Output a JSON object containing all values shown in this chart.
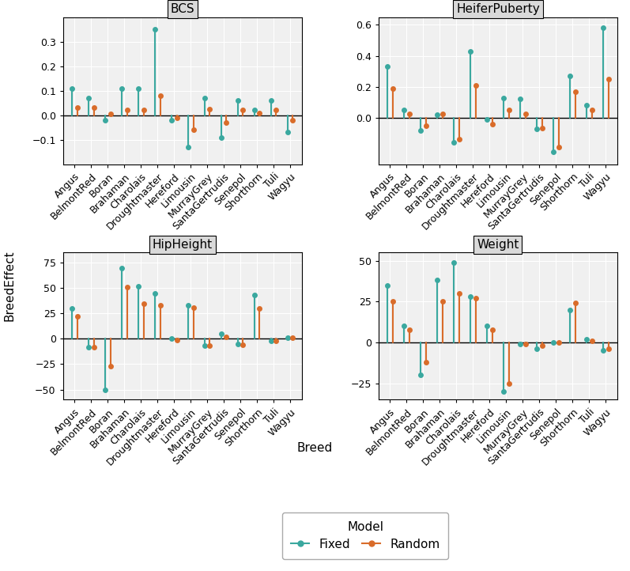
{
  "breeds": [
    "Angus",
    "BelmontRed",
    "Boran",
    "Brahaman",
    "Charolais",
    "Droughtmaster",
    "Hereford",
    "Limousin",
    "MurrayGrey",
    "SantaGertrudis",
    "Senepol",
    "Shorthorn",
    "Tuli",
    "Wagyu"
  ],
  "panels": {
    "BCS": {
      "fixed": [
        0.11,
        0.07,
        -0.02,
        0.11,
        0.11,
        0.35,
        -0.02,
        -0.13,
        0.07,
        -0.09,
        0.06,
        0.02,
        0.06,
        -0.07
      ],
      "random": [
        0.03,
        0.03,
        0.005,
        0.02,
        0.02,
        0.08,
        -0.01,
        -0.06,
        0.025,
        -0.03,
        0.02,
        0.01,
        0.02,
        -0.02
      ],
      "ylim": [
        -0.2,
        0.4
      ],
      "yticks": [
        -0.1,
        0.0,
        0.1,
        0.2,
        0.3
      ],
      "title": "BCS"
    },
    "HeiferPuberty": {
      "fixed": [
        0.33,
        0.05,
        -0.08,
        0.02,
        -0.16,
        0.43,
        -0.01,
        0.13,
        0.12,
        -0.07,
        -0.22,
        0.27,
        0.08,
        0.58
      ],
      "random": [
        0.19,
        0.025,
        -0.05,
        0.025,
        -0.14,
        0.21,
        -0.04,
        0.05,
        0.025,
        -0.065,
        -0.19,
        0.17,
        0.05,
        0.25
      ],
      "ylim": [
        -0.3,
        0.65
      ],
      "yticks": [
        0.0,
        0.2,
        0.4,
        0.6
      ],
      "title": "HeiferPuberty"
    },
    "HipHeight": {
      "fixed": [
        30,
        -8,
        -50,
        70,
        52,
        45,
        0,
        33,
        -7,
        5,
        -5,
        43,
        -2,
        1
      ],
      "random": [
        22,
        -8,
        -27,
        51,
        35,
        33,
        -1,
        31,
        -7,
        2,
        -6,
        30,
        -2,
        1
      ],
      "ylim": [
        -60,
        85
      ],
      "yticks": [
        -50,
        -25,
        0,
        25,
        50,
        75
      ],
      "title": "HipHeight"
    },
    "Weight": {
      "fixed": [
        35,
        10,
        -20,
        38,
        49,
        28,
        10,
        -30,
        -1,
        -4,
        0,
        20,
        2,
        -5
      ],
      "random": [
        25,
        8,
        -12,
        25,
        30,
        27,
        8,
        -25,
        -1,
        -2,
        0,
        24,
        1,
        -4
      ],
      "ylim": [
        -35,
        55
      ],
      "yticks": [
        -25,
        0,
        25,
        50
      ],
      "title": "Weight"
    }
  },
  "fixed_color": "#3AA89F",
  "random_color": "#D96C2A",
  "plot_bg": "#F0F0F0",
  "grid_color": "#FFFFFF",
  "facet_bg": "#D9D9D9",
  "title_fontsize": 11,
  "axis_label_fontsize": 11,
  "tick_fontsize": 9,
  "legend_fontsize": 11
}
